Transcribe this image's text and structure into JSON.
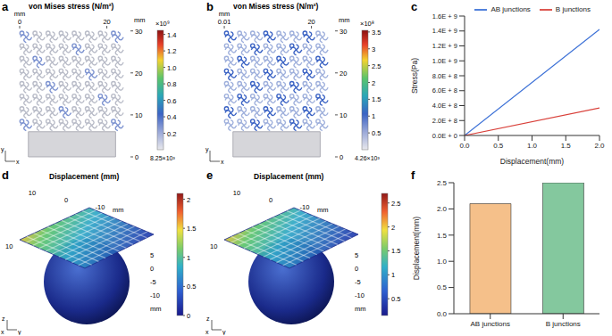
{
  "chart_data": [
    {
      "type": "contour",
      "panel": "a",
      "title": "von Mises stress (N/m²)",
      "x_unit": "mm",
      "xlim": [
        0,
        25
      ],
      "xticks": [
        0,
        20
      ],
      "y_unit": "mm",
      "ylim": [
        0,
        31
      ],
      "yticks": [
        0,
        10,
        20,
        30
      ],
      "colorbar_unit": "×10⁹",
      "colorbar_range": [
        8.25e-06,
        1.45
      ],
      "colorbar_ticks": [
        0.2,
        0.4,
        0.6,
        0.8,
        {
          "value": 1,
          "label": "1.0"
        },
        1.2,
        1.4
      ],
      "colorbar_min_label": "8.25×10³",
      "triad": [
        "y",
        "x"
      ]
    },
    {
      "type": "contour",
      "panel": "b",
      "title": "von Mises stress (N/m²)",
      "x_unit": "mm",
      "xlim": [
        0,
        25
      ],
      "xticks": [
        0.01,
        20
      ],
      "y_unit": "mm",
      "ylim": [
        0,
        31
      ],
      "yticks": [
        0,
        10,
        20,
        30
      ],
      "colorbar_unit": "×10⁸",
      "colorbar_range": [
        4.26e-05,
        3.55
      ],
      "colorbar_ticks": [
        0.5,
        1,
        1.5,
        2,
        2.5,
        3,
        3.5
      ],
      "colorbar_min_label": "4.26×10³",
      "triad": [
        "y",
        "x"
      ]
    },
    {
      "type": "line",
      "panel": "c",
      "x_label": "Displacement(mm)",
      "y_label": "Stress(Pa)",
      "x": [
        0,
        2
      ],
      "xlim": [
        0,
        2
      ],
      "xticks": [
        {
          "value": 0,
          "label": "0.0"
        },
        0.5,
        {
          "value": 1,
          "label": "1.0"
        },
        1.5,
        {
          "value": 2,
          "label": "2.0"
        }
      ],
      "ylim": [
        0,
        1600000000
      ],
      "yticks": [
        {
          "value": 0,
          "label": "0.0E + 0"
        },
        {
          "value": 200000000,
          "label": "2.0E + 8"
        },
        {
          "value": 400000000,
          "label": "4.0E + 8"
        },
        {
          "value": 600000000,
          "label": "6.0E + 8"
        },
        {
          "value": 800000000,
          "label": "8.0E + 8"
        },
        {
          "value": 1000000000,
          "label": "1.0E + 9"
        },
        {
          "value": 1200000000,
          "label": "1.2E + 9"
        },
        {
          "value": 1400000000,
          "label": "1.4E + 9"
        },
        {
          "value": 1600000000,
          "label": "1.6E + 9"
        }
      ],
      "legend": "top right",
      "series": [
        {
          "name": "AB junctions",
          "color": "#3a6fd6",
          "values": [
            0,
            1420000000
          ]
        },
        {
          "name": "B junctions",
          "color": "#d9403a",
          "values": [
            0,
            370000000
          ]
        }
      ]
    },
    {
      "type": "surface3d",
      "panel": "d",
      "title": "Displacement (mm)",
      "axis_unit": "mm",
      "ticks_top": [
        10,
        0,
        -10
      ],
      "ticks_left": [
        10
      ],
      "ticks_right": [
        5,
        0,
        -5,
        -10
      ],
      "colorbar_range": [
        0,
        2.1
      ],
      "colorbar_ticks": [
        0,
        0.5,
        1,
        1.5,
        2
      ],
      "triad": [
        "z",
        "x",
        "y"
      ]
    },
    {
      "type": "surface3d",
      "panel": "e",
      "title": "Displacement (mm)",
      "axis_unit": "mm",
      "ticks_top": [
        10,
        0,
        -10
      ],
      "ticks_left": [
        10
      ],
      "ticks_right": [
        5,
        0,
        -5,
        -10
      ],
      "colorbar_range": [
        0.15,
        2.7
      ],
      "colorbar_ticks": [
        0.5,
        1,
        1.5,
        2,
        2.5
      ],
      "triad": [
        "z",
        "x",
        "y"
      ]
    },
    {
      "type": "bar",
      "panel": "f",
      "y_label": "Displacement(mm)",
      "categories": [
        "AB junctions",
        "B junctions"
      ],
      "values": [
        2.1,
        2.5
      ],
      "colors": [
        "#f5c08a",
        "#84c89e"
      ],
      "ylim": [
        0,
        2.5
      ],
      "yticks": [
        {
          "value": 0,
          "label": "0.0"
        },
        0.5,
        {
          "value": 1,
          "label": "1.0"
        },
        1.5,
        {
          "value": 2,
          "label": "2.0"
        },
        2.5
      ]
    }
  ]
}
